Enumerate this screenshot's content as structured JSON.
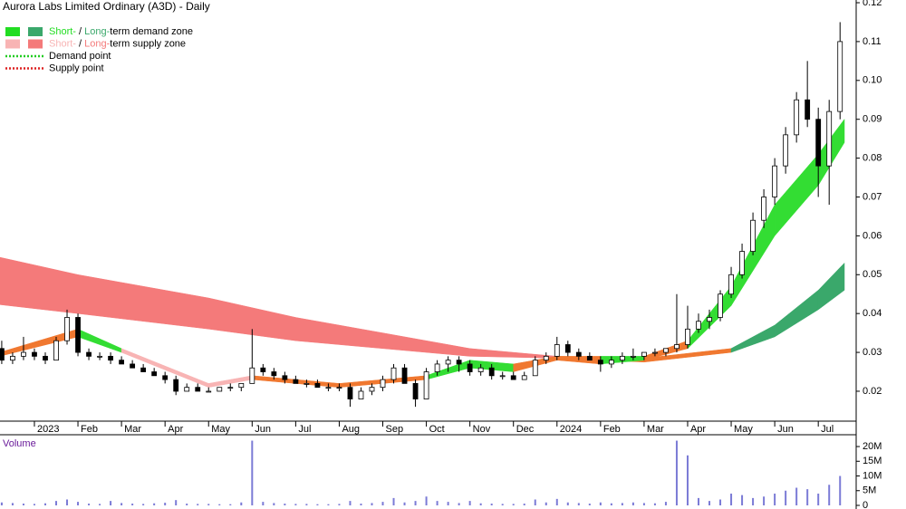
{
  "chart_data": [
    {
      "type": "candlestick",
      "title": "Aurora Labs Limited Ordinary (A3D) - Daily",
      "x": [
        -0.75,
        -0.5,
        -0.25,
        0,
        0.25,
        0.5,
        0.75,
        1,
        1.25,
        1.5,
        1.75,
        2,
        2.25,
        2.5,
        2.75,
        3,
        3.25,
        3.5,
        3.75,
        4,
        4.25,
        4.5,
        4.75,
        5,
        5.25,
        5.5,
        5.75,
        6,
        6.25,
        6.5,
        6.75,
        7,
        7.25,
        7.5,
        7.75,
        8,
        8.25,
        8.5,
        8.75,
        9,
        9.25,
        9.5,
        9.75,
        10,
        10.25,
        10.5,
        10.75,
        11,
        11.25,
        11.5,
        11.75,
        12,
        12.25,
        12.5,
        12.75,
        13,
        13.25,
        13.5,
        13.75,
        14,
        14.25,
        14.5,
        14.75,
        15,
        15.25,
        15.5,
        15.75,
        16,
        16.25,
        16.5,
        16.75,
        17,
        17.25,
        17.5,
        17.75,
        18,
        18.25,
        18.5
      ],
      "open": [
        0.031,
        0.028,
        0.029,
        0.03,
        0.029,
        0.028,
        0.033,
        0.039,
        0.03,
        0.029,
        0.029,
        0.028,
        0.027,
        0.026,
        0.025,
        0.024,
        0.023,
        0.02,
        0.021,
        0.02,
        0.02,
        0.021,
        0.021,
        0.022,
        0.026,
        0.025,
        0.024,
        0.023,
        0.022,
        0.022,
        0.021,
        0.021,
        0.021,
        0.018,
        0.02,
        0.021,
        0.023,
        0.026,
        0.022,
        0.018,
        0.025,
        0.027,
        0.028,
        0.027,
        0.025,
        0.026,
        0.024,
        0.024,
        0.023,
        0.024,
        0.028,
        0.029,
        0.032,
        0.03,
        0.029,
        0.028,
        0.027,
        0.028,
        0.029,
        0.029,
        0.03,
        0.03,
        0.031,
        0.032,
        0.036,
        0.038,
        0.039,
        0.045,
        0.05,
        0.056,
        0.064,
        0.07,
        0.078,
        0.086,
        0.095,
        0.09,
        0.078,
        0.092
      ],
      "high": [
        0.033,
        0.03,
        0.034,
        0.031,
        0.03,
        0.034,
        0.041,
        0.04,
        0.031,
        0.03,
        0.03,
        0.029,
        0.028,
        0.027,
        0.026,
        0.025,
        0.024,
        0.022,
        0.022,
        0.021,
        0.021,
        0.022,
        0.022,
        0.036,
        0.027,
        0.026,
        0.025,
        0.024,
        0.023,
        0.023,
        0.022,
        0.022,
        0.022,
        0.021,
        0.022,
        0.024,
        0.027,
        0.027,
        0.023,
        0.026,
        0.028,
        0.029,
        0.029,
        0.028,
        0.027,
        0.027,
        0.025,
        0.025,
        0.025,
        0.029,
        0.03,
        0.034,
        0.033,
        0.031,
        0.03,
        0.029,
        0.029,
        0.03,
        0.031,
        0.03,
        0.031,
        0.031,
        0.045,
        0.042,
        0.04,
        0.041,
        0.046,
        0.052,
        0.058,
        0.066,
        0.072,
        0.08,
        0.088,
        0.097,
        0.105,
        0.093,
        0.095,
        0.115
      ],
      "low": [
        0.027,
        0.027,
        0.028,
        0.028,
        0.027,
        0.028,
        0.032,
        0.029,
        0.028,
        0.028,
        0.027,
        0.027,
        0.026,
        0.025,
        0.024,
        0.022,
        0.019,
        0.02,
        0.02,
        0.02,
        0.02,
        0.02,
        0.02,
        0.022,
        0.024,
        0.023,
        0.022,
        0.022,
        0.021,
        0.021,
        0.02,
        0.02,
        0.016,
        0.018,
        0.019,
        0.02,
        0.022,
        0.022,
        0.016,
        0.018,
        0.024,
        0.025,
        0.025,
        0.024,
        0.024,
        0.023,
        0.023,
        0.023,
        0.023,
        0.024,
        0.027,
        0.028,
        0.029,
        0.028,
        0.028,
        0.025,
        0.026,
        0.027,
        0.028,
        0.028,
        0.029,
        0.029,
        0.03,
        0.031,
        0.035,
        0.036,
        0.038,
        0.044,
        0.049,
        0.055,
        0.062,
        0.068,
        0.076,
        0.084,
        0.088,
        0.07,
        0.068,
        0.09
      ],
      "close": [
        0.028,
        0.029,
        0.03,
        0.029,
        0.028,
        0.033,
        0.039,
        0.03,
        0.029,
        0.029,
        0.028,
        0.027,
        0.026,
        0.025,
        0.024,
        0.023,
        0.02,
        0.021,
        0.02,
        0.02,
        0.021,
        0.021,
        0.022,
        0.026,
        0.025,
        0.024,
        0.023,
        0.022,
        0.022,
        0.021,
        0.021,
        0.021,
        0.018,
        0.02,
        0.021,
        0.023,
        0.026,
        0.022,
        0.018,
        0.025,
        0.027,
        0.028,
        0.027,
        0.025,
        0.026,
        0.024,
        0.024,
        0.023,
        0.024,
        0.028,
        0.029,
        0.032,
        0.03,
        0.029,
        0.028,
        0.027,
        0.028,
        0.029,
        0.029,
        0.03,
        0.03,
        0.031,
        0.032,
        0.036,
        0.038,
        0.039,
        0.045,
        0.05,
        0.056,
        0.064,
        0.07,
        0.078,
        0.086,
        0.095,
        0.09,
        0.078,
        0.092,
        0.11
      ],
      "up_color": "#ffffff",
      "down_color": "#000000",
      "bands": [
        {
          "x": [
            -0.8,
            1,
            4,
            6,
            8,
            10,
            12,
            14,
            16,
            17,
            18,
            18.6
          ],
          "upper": [
            0.0545,
            0.05,
            0.044,
            0.039,
            0.035,
            0.031,
            0.029,
            0.0285,
            0.031,
            0.037,
            0.046,
            0.053
          ],
          "lower": [
            0.0423,
            0.04,
            0.036,
            0.033,
            0.031,
            0.029,
            0.0285,
            0.0275,
            0.03,
            0.034,
            0.041,
            0.046
          ],
          "colors": [
            "#f47a7a",
            "#f47a7a",
            "#f47a7a",
            "#f47a7a",
            "#f47a7a",
            "#f47a7a",
            "#f07830",
            "#f07830",
            "#3aa86b",
            "#3aa86b",
            "#3aa86b"
          ]
        },
        {
          "x": [
            -0.8,
            1,
            2,
            4,
            5,
            7,
            9,
            10,
            11,
            12,
            13,
            14,
            15,
            16,
            17,
            18,
            18.6
          ],
          "upper": [
            0.03,
            0.036,
            0.031,
            0.022,
            0.024,
            0.022,
            0.024,
            0.028,
            0.027,
            0.029,
            0.029,
            0.029,
            0.033,
            0.047,
            0.068,
            0.081,
            0.09
          ],
          "lower": [
            0.029,
            0.034,
            0.03,
            0.021,
            0.023,
            0.021,
            0.023,
            0.026,
            0.025,
            0.028,
            0.027,
            0.028,
            0.031,
            0.042,
            0.06,
            0.073,
            0.084
          ],
          "colors": [
            "#f07830",
            "#33dd33",
            "#f8b4b4",
            "#f8b4b4",
            "#f07830",
            "#f07830",
            "#33dd33",
            "#33dd33",
            "#f07830",
            "#f07830",
            "#33dd33",
            "#f07830",
            "#33dd33",
            "#33dd33",
            "#33dd33",
            "#33dd33"
          ]
        }
      ],
      "xlim": [
        -0.79,
        18.87
      ],
      "xticks": [
        {
          "value": 0,
          "label": "2023"
        },
        {
          "value": 1,
          "label": "Feb"
        },
        {
          "value": 2,
          "label": "Mar"
        },
        {
          "value": 3,
          "label": "Apr"
        },
        {
          "value": 4,
          "label": "May"
        },
        {
          "value": 5,
          "label": "Jun"
        },
        {
          "value": 6,
          "label": "Jul"
        },
        {
          "value": 7,
          "label": "Aug"
        },
        {
          "value": 8,
          "label": "Sep"
        },
        {
          "value": 9,
          "label": "Oct"
        },
        {
          "value": 10,
          "label": "Nov"
        },
        {
          "value": 11,
          "label": "Dec"
        },
        {
          "value": 12,
          "label": "2024"
        },
        {
          "value": 13,
          "label": "Feb"
        },
        {
          "value": 14,
          "label": "Mar"
        },
        {
          "value": 15,
          "label": "Apr"
        },
        {
          "value": 16,
          "label": "May"
        },
        {
          "value": 17,
          "label": "Jun"
        },
        {
          "value": 18,
          "label": "Jul"
        }
      ],
      "ylim": [
        0.0123,
        0.1207
      ],
      "yticks": [
        0.02,
        0.03,
        0.04,
        0.05,
        0.06,
        0.07,
        0.08,
        0.09,
        {
          "value": 0.1,
          "label": "0.10"
        },
        0.11,
        0.12
      ],
      "legend": [
        {
          "parts": [
            "Short-",
            " / ",
            "Long-",
            "term demand zone"
          ],
          "swatches": [
            "#22dd22",
            "#3aa86b"
          ]
        },
        {
          "parts": [
            "Short-",
            " / ",
            "Long-",
            "term supply zone"
          ],
          "swatches": [
            "#f8b4b4",
            "#f47a7a"
          ]
        },
        {
          "parts": [
            "Demand point"
          ],
          "line": "#22cc22"
        },
        {
          "parts": [
            "Supply point"
          ],
          "line": "#dd2222"
        }
      ]
    },
    {
      "type": "bar",
      "title": "Volume",
      "color": "#7b7bd6",
      "x": [
        -0.75,
        -0.5,
        -0.25,
        0,
        0.25,
        0.5,
        0.75,
        1,
        1.25,
        1.5,
        1.75,
        2,
        2.25,
        2.5,
        2.75,
        3,
        3.25,
        3.5,
        3.75,
        4,
        4.25,
        4.5,
        4.75,
        5,
        5.25,
        5.5,
        5.75,
        6,
        6.25,
        6.5,
        6.75,
        7,
        7.25,
        7.5,
        7.75,
        8,
        8.25,
        8.5,
        8.75,
        9,
        9.25,
        9.5,
        9.75,
        10,
        10.25,
        10.5,
        10.75,
        11,
        11.25,
        11.5,
        11.75,
        12,
        12.25,
        12.5,
        12.75,
        13,
        13.25,
        13.5,
        13.75,
        14,
        14.25,
        14.5,
        14.75,
        15,
        15.25,
        15.5,
        15.75,
        16,
        16.25,
        16.5,
        16.75,
        17,
        17.25,
        17.5,
        17.75,
        18,
        18.25,
        18.5
      ],
      "values": [
        1000000,
        800000,
        600000,
        500000,
        700000,
        1500000,
        2000000,
        1200000,
        600000,
        500000,
        1500000,
        800000,
        600000,
        500000,
        700000,
        900000,
        1800000,
        600000,
        500000,
        500000,
        400000,
        400000,
        1000000,
        22000000,
        1200000,
        800000,
        600000,
        500000,
        500000,
        400000,
        400000,
        500000,
        1500000,
        600000,
        800000,
        1200000,
        2500000,
        1000000,
        1500000,
        3000000,
        1500000,
        1200000,
        800000,
        1500000,
        700000,
        600000,
        500000,
        500000,
        600000,
        2000000,
        1000000,
        2200000,
        1000000,
        800000,
        600000,
        1000000,
        700000,
        800000,
        1000000,
        800000,
        700000,
        1200000,
        22000000,
        17000000,
        2500000,
        1500000,
        2000000,
        4000000,
        3500000,
        2500000,
        3000000,
        4000000,
        5000000,
        6000000,
        5500000,
        4000000,
        7000000,
        10000000
      ],
      "xlim": [
        -0.79,
        18.87
      ],
      "ylim": [
        0,
        23400000
      ],
      "yticks": [
        0,
        {
          "value": 5000000,
          "label": "5M"
        },
        {
          "value": 10000000,
          "label": "10M"
        },
        {
          "value": 15000000,
          "label": "15M"
        },
        {
          "value": 20000000,
          "label": "20M"
        }
      ]
    }
  ]
}
